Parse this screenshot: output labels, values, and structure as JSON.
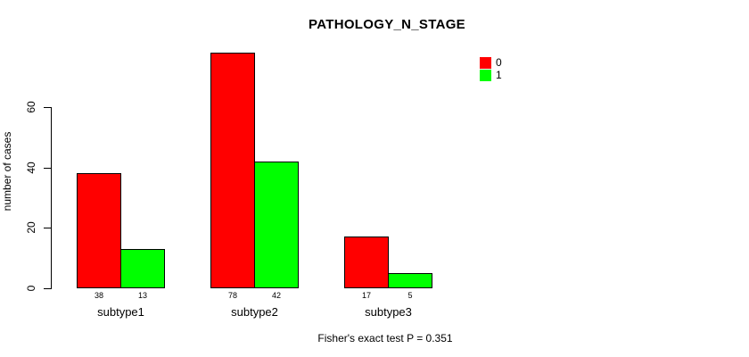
{
  "chart_data": {
    "type": "bar",
    "title": "PATHOLOGY_N_STAGE",
    "categories": [
      "subtype1",
      "subtype2",
      "subtype3"
    ],
    "series": [
      {
        "name": "0",
        "color": "#ff0000",
        "values": [
          38,
          78,
          17
        ]
      },
      {
        "name": "1",
        "color": "#00ff00",
        "values": [
          13,
          42,
          5
        ]
      }
    ],
    "ylabel": "number of cases",
    "xlabel": "",
    "yticks": [
      0,
      20,
      40,
      60
    ],
    "ylim": [
      0,
      78
    ],
    "grid": false,
    "bar_border_color": "#000000",
    "value_labels_shown": true,
    "legend_position": "top-right",
    "annotation": "Fisher's exact test P = 0.351"
  }
}
